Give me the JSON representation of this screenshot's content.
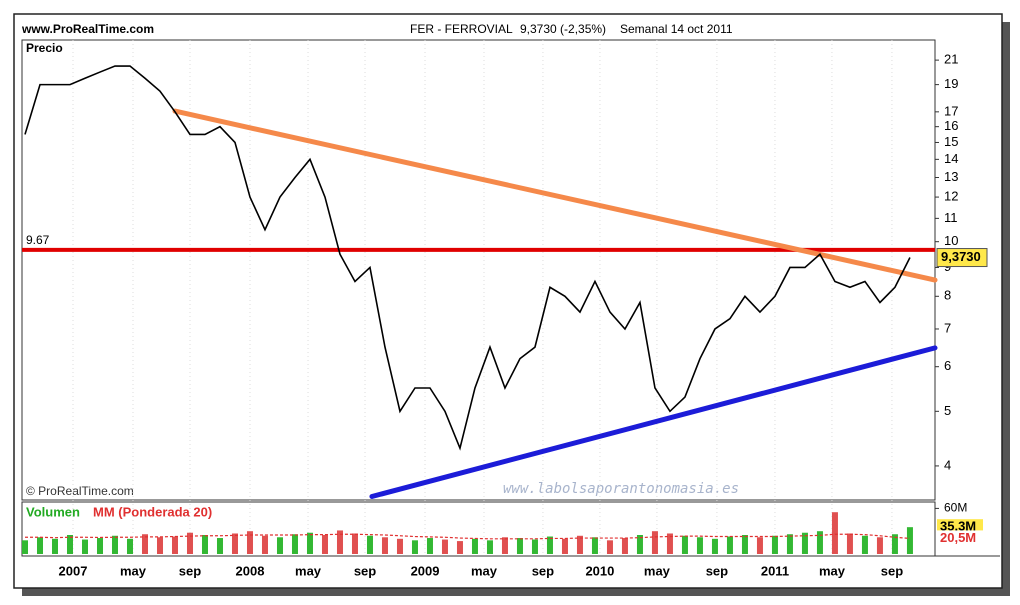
{
  "header": {
    "source": "www.ProRealTime.com",
    "title": "FER - FERROVIAL",
    "quote": "9,3730 (-2,35%)",
    "period": "Semanal  14 oct 2011"
  },
  "watermark": "www.labolsaporantonomasia.es",
  "copyright": "© ProRealTime.com",
  "chart_data": [
    {
      "type": "line",
      "title": "Precio",
      "log_scale": true,
      "xlim": [
        -0.2,
        60.67
      ],
      "ylim": [
        3.48,
        22.8
      ],
      "yticks": [
        4,
        5,
        6,
        7,
        8,
        9,
        10,
        11,
        12,
        13,
        14,
        15,
        16,
        17,
        19,
        21
      ],
      "series": [
        {
          "name": "FER",
          "color": "#000000",
          "values": [
            15.5,
            19,
            19,
            19,
            19.5,
            20,
            20.5,
            20.5,
            19.5,
            18.5,
            17,
            15.5,
            15.5,
            16,
            15,
            12,
            10.5,
            12,
            13,
            14,
            12,
            9.5,
            8.5,
            9,
            6.5,
            5,
            5.5,
            5.5,
            5,
            4.3,
            5.5,
            6.5,
            5.5,
            6.2,
            6.5,
            8.3,
            8,
            7.5,
            8.5,
            7.5,
            7,
            7.8,
            5.5,
            5,
            5.3,
            6.2,
            7,
            7.3,
            8,
            7.5,
            8,
            9,
            9,
            9.5,
            8.5,
            8.3,
            8.5,
            7.8,
            8.3,
            9.373
          ],
          "value_labels": [
            null,
            null,
            null,
            null,
            null,
            null,
            null,
            null,
            null,
            null,
            null,
            null,
            null,
            null,
            null,
            null,
            null,
            null,
            null,
            null,
            null,
            null,
            null,
            null,
            null,
            null,
            null,
            null,
            null,
            null,
            null,
            null,
            null,
            null,
            null,
            null,
            null,
            null,
            null,
            null,
            null,
            null,
            null,
            null,
            null,
            null,
            null,
            null,
            null,
            null,
            null,
            null,
            null,
            null,
            null,
            null,
            null,
            null,
            null,
            "9,3730"
          ]
        }
      ],
      "hlines": [
        {
          "value": 9.67,
          "color": "#e00000"
        }
      ],
      "trendlines": [
        {
          "color": "#f5894a",
          "points": [
            [
              10,
              17.05
            ],
            [
              60.67,
              8.55
            ]
          ]
        },
        {
          "color": "#1c1cd8",
          "points": [
            [
              23.13,
              3.53
            ],
            [
              60.67,
              6.48
            ]
          ]
        }
      ]
    },
    {
      "type": "bar",
      "title": "Volumen",
      "xlim": [
        -0.2,
        60.67
      ],
      "ylim": [
        0,
        65.8
      ],
      "yticks": [
        {
          "value": 60,
          "label": "60M"
        }
      ],
      "up_color": "#33b833",
      "down_color": "#e05050",
      "xticks": [
        {
          "value": 3.2,
          "label": "2007"
        },
        {
          "value": 7.2,
          "label": "may"
        },
        {
          "value": 11,
          "label": "sep"
        },
        {
          "value": 15,
          "label": "2008"
        },
        {
          "value": 18.87,
          "label": "may"
        },
        {
          "value": 22.67,
          "label": "sep"
        },
        {
          "value": 26.67,
          "label": "2009"
        },
        {
          "value": 30.6,
          "label": "may"
        },
        {
          "value": 34.53,
          "label": "sep"
        },
        {
          "value": 38.33,
          "label": "2010"
        },
        {
          "value": 42.13,
          "label": "may"
        },
        {
          "value": 46.13,
          "label": "sep"
        },
        {
          "value": 50,
          "label": "2011"
        },
        {
          "value": 53.8,
          "label": "may"
        },
        {
          "value": 57.8,
          "label": "sep"
        }
      ],
      "series": [
        {
          "name": "Volumen",
          "color": "#22aa22",
          "values": [
            18,
            22,
            20,
            25,
            19,
            21,
            24,
            20,
            26,
            22,
            23,
            28,
            25,
            21,
            27,
            30,
            24,
            22,
            26,
            28,
            25,
            31,
            27,
            24,
            22,
            20,
            18,
            21,
            19,
            17,
            20,
            18,
            22,
            21,
            19,
            23,
            20,
            24,
            22,
            18,
            21,
            25,
            30,
            27,
            24,
            22,
            20,
            23,
            25,
            22,
            24,
            26,
            28,
            30,
            55,
            27,
            24,
            22,
            26,
            35.3
          ],
          "value_labels": [
            null,
            null,
            null,
            null,
            null,
            null,
            null,
            null,
            null,
            null,
            null,
            null,
            null,
            null,
            null,
            null,
            null,
            null,
            null,
            null,
            null,
            null,
            null,
            null,
            null,
            null,
            null,
            null,
            null,
            null,
            null,
            null,
            null,
            null,
            null,
            null,
            null,
            null,
            null,
            null,
            null,
            null,
            null,
            null,
            null,
            null,
            null,
            null,
            null,
            null,
            null,
            null,
            null,
            null,
            null,
            null,
            null,
            null,
            null,
            "35,3M"
          ]
        },
        {
          "name": "MM (Ponderada 20)",
          "color": "#e03030",
          "values": [
            22,
            22,
            21.5,
            22,
            22,
            21.8,
            22,
            22,
            22.5,
            22.5,
            23,
            23.5,
            24,
            24,
            24.5,
            25,
            25,
            25,
            25,
            25.5,
            25.5,
            26,
            26,
            25.5,
            25,
            24,
            23,
            22.5,
            22,
            21,
            20.5,
            20,
            20,
            20,
            20,
            20.5,
            20.5,
            21,
            21,
            21,
            21,
            21.5,
            22.5,
            23,
            23.5,
            23.5,
            23,
            23,
            23,
            23,
            23,
            23.5,
            24,
            24.5,
            26,
            26,
            25.5,
            24,
            22,
            20.5
          ],
          "value_labels": [
            null,
            null,
            null,
            null,
            null,
            null,
            null,
            null,
            null,
            null,
            null,
            null,
            null,
            null,
            null,
            null,
            null,
            null,
            null,
            null,
            null,
            null,
            null,
            null,
            null,
            null,
            null,
            null,
            null,
            null,
            null,
            null,
            null,
            null,
            null,
            null,
            null,
            null,
            null,
            null,
            null,
            null,
            null,
            null,
            null,
            null,
            null,
            null,
            null,
            null,
            null,
            null,
            null,
            null,
            null,
            null,
            null,
            null,
            null,
            "20,5M"
          ]
        }
      ]
    }
  ]
}
